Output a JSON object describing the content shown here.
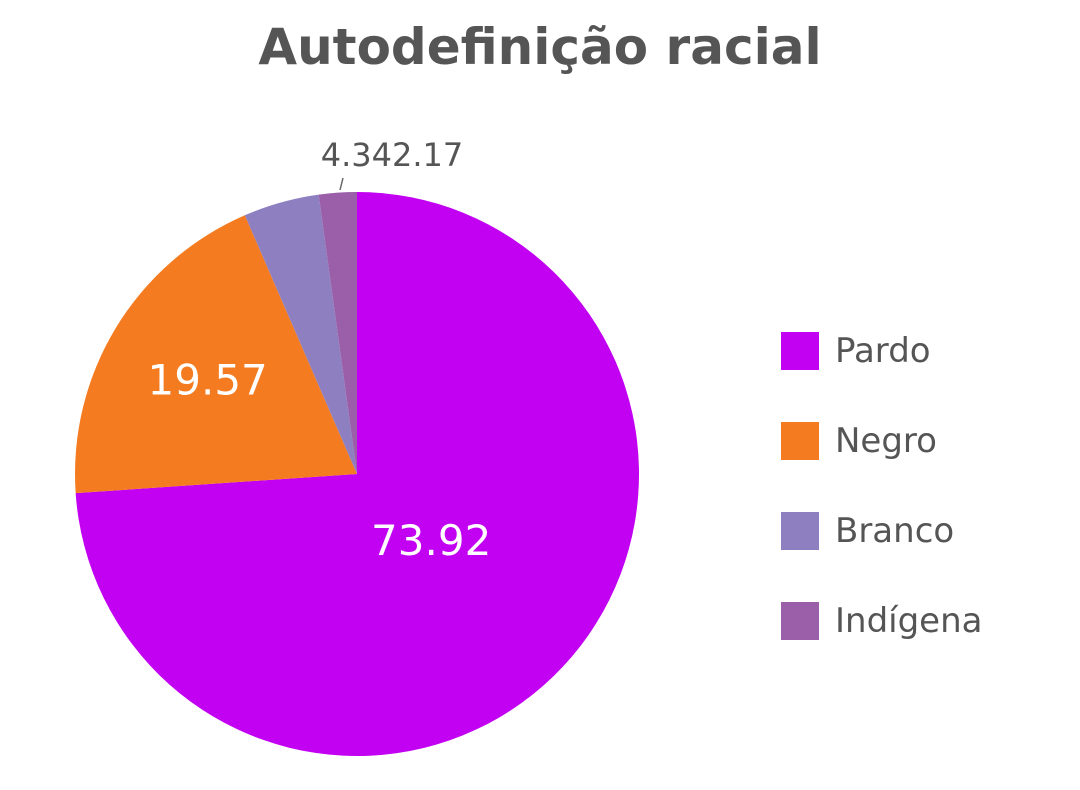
{
  "chart_data": {
    "type": "pie",
    "title": "Autodefinição racial",
    "slices": [
      {
        "label": "Pardo",
        "value": 73.92,
        "color": "#C200F2",
        "data_label": "73.92"
      },
      {
        "label": "Negro",
        "value": 19.57,
        "color": "#F47B20",
        "data_label": "19.57"
      },
      {
        "label": "Branco",
        "value": 4.34,
        "color": "#8E7FC0",
        "data_label": "4.34"
      },
      {
        "label": "Indígena",
        "value": 2.17,
        "color": "#9A5FA8",
        "data_label": "2.17"
      }
    ],
    "combined_outside_label": "4.342.17",
    "legend": {
      "position": "right"
    }
  }
}
